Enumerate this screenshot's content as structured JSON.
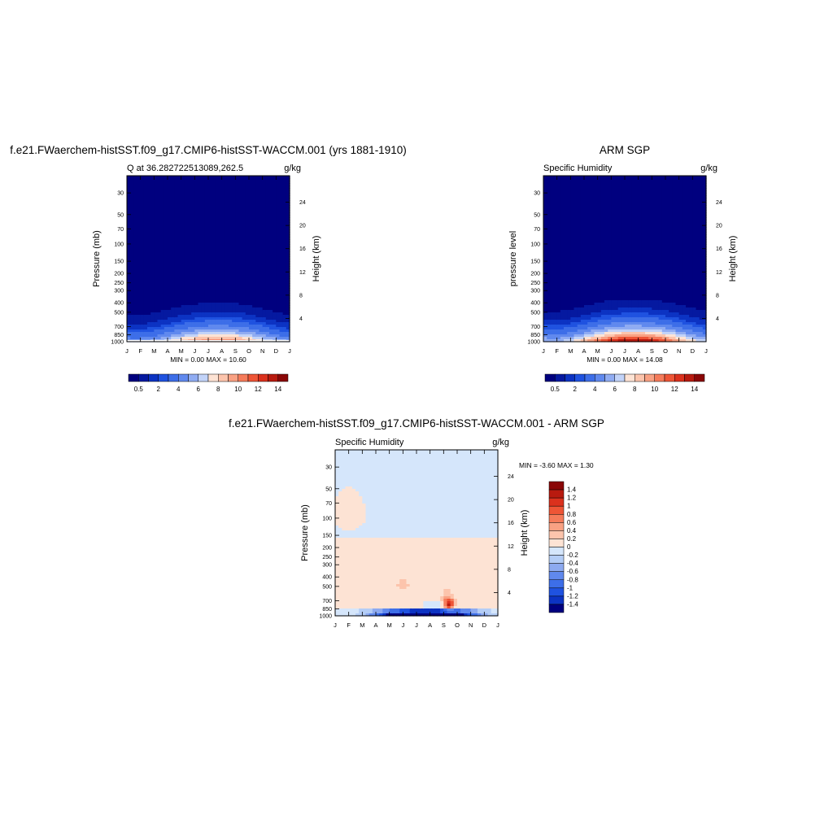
{
  "chart_data": [
    {
      "type": "heatmap",
      "title": "f.e21.FWaerchem-histSST.f09_g17.CMIP6-histSST-WACCM.001 (yrs 1881-1910)",
      "subtitle_left": "Q at 36.282722513089,262.5",
      "subtitle_right": "g/kg",
      "ylabel": "Pressure (mb)",
      "y2label": "Height (km)",
      "x_ticks": [
        "J",
        "F",
        "M",
        "A",
        "M",
        "J",
        "J",
        "A",
        "S",
        "O",
        "N",
        "D",
        "J"
      ],
      "y_ticks": [
        30,
        50,
        70,
        100,
        150,
        200,
        250,
        300,
        400,
        500,
        700,
        850,
        1000
      ],
      "y_log": true,
      "ylim": [
        1000,
        20
      ],
      "y2_ticks": [
        24,
        20,
        16,
        12,
        8,
        4
      ],
      "stats": "MIN =   0.00 MAX =  10.60",
      "colorbar": {
        "levels": [
          0.5,
          1,
          1.5,
          2,
          3,
          4,
          5,
          6,
          7,
          8,
          9,
          10,
          11,
          12,
          13,
          14
        ],
        "labels": [
          "0.5",
          "2",
          "4",
          "6",
          "8",
          "10",
          "12",
          "14"
        ],
        "colors": [
          "#00007f",
          "#0519a0",
          "#0c33c3",
          "#1f52e0",
          "#3d6ee8",
          "#6089ee",
          "#90acf2",
          "#c2d3f8",
          "#fde3d4",
          "#fcc4ac",
          "#f9a183",
          "#f57b5a",
          "#ee5536",
          "#db311d",
          "#b81a0f",
          "#8a0707"
        ]
      },
      "peak": {
        "value": 10.6,
        "month": 6.5
      }
    },
    {
      "type": "heatmap",
      "title": "ARM SGP",
      "subtitle_left": "Specific Humidity",
      "subtitle_right": "g/kg",
      "ylabel": "pressure level",
      "y2label": "Height (km)",
      "x_ticks": [
        "J",
        "F",
        "M",
        "A",
        "M",
        "J",
        "J",
        "A",
        "S",
        "O",
        "N",
        "D",
        "J"
      ],
      "y_ticks": [
        30,
        50,
        70,
        100,
        150,
        200,
        250,
        300,
        400,
        500,
        700,
        850,
        1000
      ],
      "y_log": true,
      "ylim": [
        1000,
        20
      ],
      "y2_ticks": [
        24,
        20,
        16,
        12,
        8,
        4
      ],
      "stats": "MIN =   0.00 MAX =  14.08",
      "colorbar": {
        "levels": [
          0.5,
          1,
          1.5,
          2,
          3,
          4,
          5,
          6,
          7,
          8,
          9,
          10,
          11,
          12,
          13,
          14
        ],
        "labels": [
          "0.5",
          "2",
          "4",
          "6",
          "8",
          "10",
          "12",
          "14"
        ],
        "colors": [
          "#00007f",
          "#0519a0",
          "#0c33c3",
          "#1f52e0",
          "#3d6ee8",
          "#6089ee",
          "#90acf2",
          "#c2d3f8",
          "#fde3d4",
          "#fcc4ac",
          "#f9a183",
          "#f57b5a",
          "#ee5536",
          "#db311d",
          "#b81a0f",
          "#8a0707"
        ]
      },
      "peak": {
        "value": 14.08,
        "month": 6.5
      }
    },
    {
      "type": "heatmap",
      "title": "f.e21.FWaerchem-histSST.f09_g17.CMIP6-histSST-WACCM.001 - ARM SGP",
      "subtitle_left": "Specific Humidity",
      "subtitle_right": "g/kg",
      "ylabel": "Pressure (mb)",
      "y2label": "Height (km)",
      "x_ticks": [
        "J",
        "F",
        "M",
        "A",
        "M",
        "J",
        "J",
        "A",
        "S",
        "O",
        "N",
        "D",
        "J"
      ],
      "y_ticks": [
        30,
        50,
        70,
        100,
        150,
        200,
        250,
        300,
        400,
        500,
        700,
        850,
        1000
      ],
      "y_log": true,
      "ylim": [
        1000,
        20
      ],
      "y2_ticks": [
        24,
        20,
        16,
        12,
        8,
        4
      ],
      "stats": "MIN =  -3.60 MAX =   1.30",
      "colorbar": {
        "levels": [
          1.4,
          1.2,
          1,
          0.8,
          0.6,
          0.4,
          0.2,
          0,
          -0.2,
          -0.4,
          -0.6,
          -0.8,
          -1,
          -1.2,
          -1.4
        ],
        "labels": [
          "1.4",
          "1.2",
          "1",
          "0.8",
          "0.6",
          "0.4",
          "0.2",
          "0",
          "-0.2",
          "-0.4",
          "-0.6",
          "-0.8",
          "-1",
          "-1.2",
          "-1.4"
        ],
        "colors": [
          "#8a0707",
          "#b81a0f",
          "#db311d",
          "#ee5536",
          "#f57b5a",
          "#f9a183",
          "#fcc4ac",
          "#fde3d4",
          "#d5e6fb",
          "#b4cdf6",
          "#8daaf0",
          "#6089ee",
          "#3d6ee8",
          "#1f52e0",
          "#0c33c3",
          "#00007f"
        ]
      }
    }
  ]
}
